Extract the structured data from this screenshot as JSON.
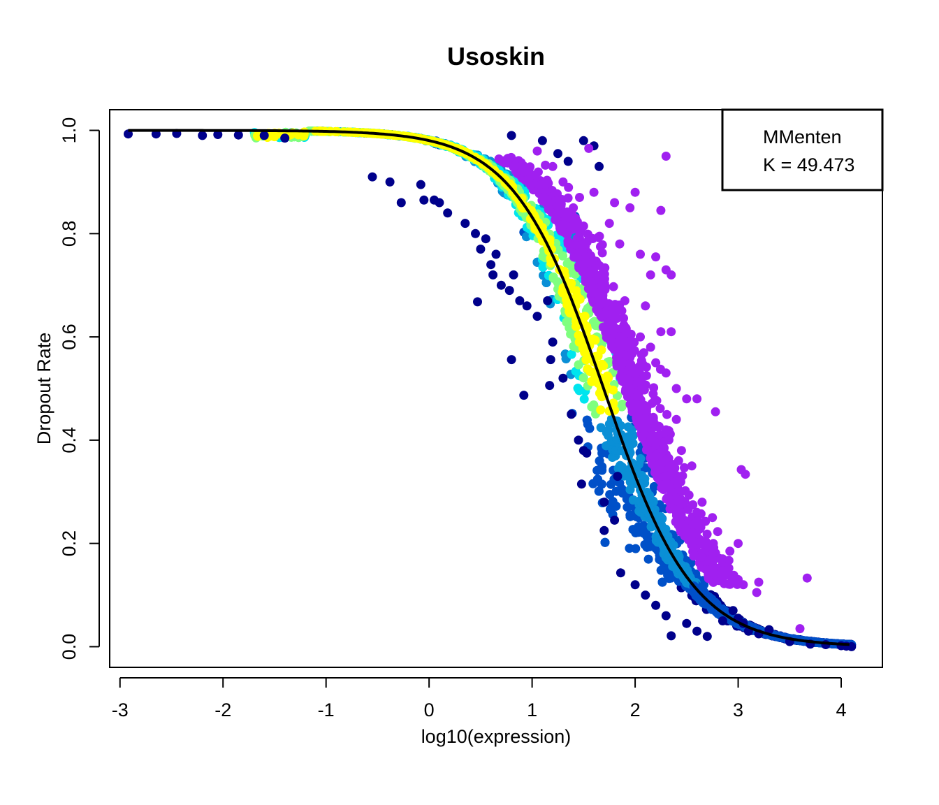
{
  "chart_data": {
    "type": "scatter",
    "title": "Usoskin",
    "xlabel": "log10(expression)",
    "ylabel": "Dropout Rate",
    "xlim": [
      -3.1,
      4.4
    ],
    "ylim": [
      -0.04,
      1.04
    ],
    "xticks": [
      -3,
      -2,
      -1,
      0,
      1,
      2,
      3,
      4
    ],
    "xtick_labels": [
      "-3",
      "-2",
      "-1",
      "0",
      "1",
      "2",
      "3",
      "4"
    ],
    "yticks": [
      0.0,
      0.2,
      0.4,
      0.6,
      0.8,
      1.0
    ],
    "ytick_labels": [
      "0.0",
      "0.2",
      "0.4",
      "0.6",
      "0.8",
      "1.0"
    ],
    "grid": false,
    "legend": {
      "position": "top-right",
      "entries": [
        "MMenten",
        "K = 49.473"
      ]
    },
    "fit_curve": {
      "model": "MMenten",
      "K": 49.473,
      "color": "#000000"
    },
    "density_colors": [
      "#00008b",
      "#0050c8",
      "#0a8fd6",
      "#00e5ee",
      "#7fff7f",
      "#ffff00"
    ],
    "outlier_color": "#a020f0",
    "series": [
      {
        "values": [
          [
            -2.92,
            0.993
          ],
          [
            -2.65,
            0.993
          ],
          [
            -2.45,
            0.994
          ],
          [
            -2.2,
            0.99
          ],
          [
            -2.05,
            0.992
          ],
          [
            -1.85,
            0.991
          ],
          [
            -1.6,
            0.99
          ],
          [
            -1.4,
            0.985
          ],
          [
            -0.55,
            0.91
          ],
          [
            -0.38,
            0.9
          ],
          [
            -0.27,
            0.86
          ],
          [
            -0.08,
            0.895
          ],
          [
            -0.05,
            0.865
          ],
          [
            0.05,
            0.865
          ],
          [
            0.1,
            0.86
          ],
          [
            0.18,
            0.84
          ],
          [
            0.35,
            0.82
          ],
          [
            0.45,
            0.8
          ],
          [
            0.5,
            0.77
          ],
          [
            0.55,
            0.79
          ],
          [
            0.6,
            0.74
          ],
          [
            0.62,
            0.72
          ],
          [
            0.65,
            0.76
          ],
          [
            0.7,
            0.7
          ],
          [
            0.78,
            0.69
          ],
          [
            0.82,
            0.72
          ],
          [
            0.88,
            0.67
          ],
          [
            0.95,
            0.66
          ],
          [
            1.05,
            0.64
          ],
          [
            1.15,
            0.67
          ],
          [
            0.47,
            0.668
          ],
          [
            0.8,
            0.556
          ],
          [
            0.92,
            0.487
          ],
          [
            1.17,
            0.506
          ],
          [
            1.18,
            0.556
          ],
          [
            1.2,
            0.59
          ],
          [
            1.3,
            0.52
          ],
          [
            1.38,
            0.45
          ],
          [
            1.45,
            0.4
          ],
          [
            1.5,
            0.38
          ],
          [
            1.53,
            0.375
          ],
          [
            1.48,
            0.315
          ],
          [
            1.7,
            0.28
          ],
          [
            1.7,
            0.225
          ],
          [
            1.8,
            0.245
          ],
          [
            1.86,
            0.143
          ],
          [
            1.83,
            0.33
          ],
          [
            2.0,
            0.12
          ],
          [
            2.1,
            0.1
          ],
          [
            2.2,
            0.08
          ],
          [
            2.3,
            0.06
          ],
          [
            2.35,
            0.021
          ],
          [
            2.5,
            0.045
          ],
          [
            2.6,
            0.03
          ],
          [
            2.7,
            0.02
          ],
          [
            2.85,
            0.05
          ],
          [
            2.95,
            0.07
          ],
          [
            3.0,
            0.055
          ],
          [
            3.05,
            0.045
          ],
          [
            3.1,
            0.03
          ],
          [
            3.2,
            0.025
          ],
          [
            3.3,
            0.033
          ],
          [
            3.5,
            0.01
          ],
          [
            3.7,
            0.005
          ],
          [
            3.85,
            0.004
          ],
          [
            4.0,
            0.002
          ],
          [
            4.05,
            0.001
          ],
          [
            4.1,
            0.0
          ],
          [
            1.5,
            0.98
          ],
          [
            1.6,
            0.97
          ],
          [
            1.25,
            0.955
          ],
          [
            1.35,
            0.94
          ],
          [
            1.65,
            0.93
          ],
          [
            0.8,
            0.99
          ],
          [
            1.1,
            0.98
          ]
        ]
      },
      {
        "name_hidden": true,
        "values": [
          [
            1.05,
            0.96
          ],
          [
            1.2,
            0.93
          ],
          [
            1.3,
            0.9
          ],
          [
            1.4,
            0.85
          ],
          [
            1.55,
            0.965
          ],
          [
            1.6,
            0.88
          ],
          [
            1.75,
            0.82
          ],
          [
            1.8,
            0.86
          ],
          [
            1.85,
            0.78
          ],
          [
            1.95,
            0.85
          ],
          [
            2.05,
            0.76
          ],
          [
            2.15,
            0.72
          ],
          [
            2.25,
            0.845
          ],
          [
            2.2,
            0.755
          ],
          [
            2.3,
            0.73
          ],
          [
            2.35,
            0.72
          ],
          [
            2.1,
            0.66
          ],
          [
            2.05,
            0.6
          ],
          [
            2.15,
            0.58
          ],
          [
            2.2,
            0.55
          ],
          [
            2.25,
            0.61
          ],
          [
            2.3,
            0.53
          ],
          [
            2.4,
            0.5
          ],
          [
            2.5,
            0.48
          ],
          [
            2.6,
            0.48
          ],
          [
            2.78,
            0.455
          ],
          [
            2.4,
            0.44
          ],
          [
            2.3,
            0.42
          ],
          [
            2.45,
            0.38
          ],
          [
            2.55,
            0.35
          ],
          [
            2.45,
            0.3
          ],
          [
            2.6,
            0.26
          ],
          [
            2.65,
            0.28
          ],
          [
            2.75,
            0.25
          ],
          [
            2.85,
            0.17
          ],
          [
            2.9,
            0.15
          ],
          [
            3.0,
            0.13
          ],
          [
            3.05,
            0.12
          ],
          [
            3.0,
            0.2
          ],
          [
            2.92,
            0.185
          ],
          [
            3.03,
            0.343
          ],
          [
            3.07,
            0.334
          ],
          [
            3.2,
            0.125
          ],
          [
            3.18,
            0.105
          ],
          [
            3.67,
            0.133
          ],
          [
            3.6,
            0.035
          ],
          [
            2.3,
            0.95
          ],
          [
            2.0,
            0.88
          ],
          [
            1.9,
            0.67
          ],
          [
            2.35,
            0.61
          ]
        ]
      }
    ]
  }
}
